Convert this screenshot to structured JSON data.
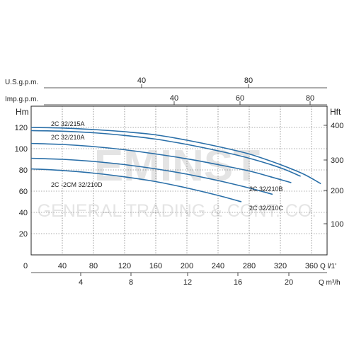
{
  "watermark": {
    "line1": "EMINST",
    "line2": "GENERAL TRADING & CONT. CO."
  },
  "axes": {
    "top1_label": "U.S.g.p.m.",
    "top1_ticks": [
      "40",
      "80"
    ],
    "top2_label": "Imp.g.p.m.",
    "top2_ticks": [
      "40",
      "60",
      "80"
    ],
    "left_unit": "Hm",
    "right_unit": "Hft",
    "right_ticks": [
      "400",
      "300",
      "200",
      "100"
    ],
    "bottom1_unit": "Q  l/1'",
    "bottom2_unit": "Q  m³/h",
    "bottom2_ticks": [
      "4",
      "8",
      "12",
      "16",
      "20"
    ]
  },
  "chart_data": {
    "type": "line",
    "title": "",
    "xlabel": "Q l/1'",
    "ylabel": "Hm",
    "xlim": [
      0,
      380
    ],
    "ylim": [
      0,
      140
    ],
    "x_ticks": [
      0,
      40,
      80,
      120,
      160,
      200,
      240,
      280,
      320,
      360
    ],
    "y_ticks": [
      20,
      40,
      60,
      80,
      100,
      120
    ],
    "grid": true,
    "series": [
      {
        "name": "2C 32/215A",
        "color": "#2a6fa8",
        "points": [
          [
            0,
            120
          ],
          [
            40,
            119.5
          ],
          [
            80,
            118
          ],
          [
            120,
            116
          ],
          [
            160,
            113
          ],
          [
            200,
            108
          ],
          [
            240,
            102
          ],
          [
            280,
            95
          ],
          [
            320,
            85
          ],
          [
            350,
            76
          ],
          [
            372,
            67
          ]
        ]
      },
      {
        "name": "2C 32/210A",
        "color": "#2a6fa8",
        "points": [
          [
            0,
            117
          ],
          [
            40,
            116.5
          ],
          [
            80,
            115
          ],
          [
            120,
            112.5
          ],
          [
            160,
            109
          ],
          [
            200,
            104
          ],
          [
            240,
            98
          ],
          [
            280,
            91
          ],
          [
            320,
            82
          ],
          [
            346,
            74
          ]
        ]
      },
      {
        "name": "2C 32/210B",
        "color": "#2a6fa8",
        "points": [
          [
            0,
            105
          ],
          [
            40,
            104
          ],
          [
            80,
            102
          ],
          [
            120,
            99
          ],
          [
            160,
            95
          ],
          [
            200,
            90.5
          ],
          [
            240,
            85
          ],
          [
            280,
            79
          ],
          [
            310,
            73
          ],
          [
            334,
            68
          ]
        ]
      },
      {
        "name": "2C 32/210C",
        "color": "#2a6fa8",
        "points": [
          [
            0,
            91
          ],
          [
            40,
            90
          ],
          [
            80,
            88
          ],
          [
            120,
            85
          ],
          [
            160,
            81
          ],
          [
            200,
            76
          ],
          [
            240,
            70
          ],
          [
            280,
            63
          ],
          [
            310,
            57
          ]
        ]
      },
      {
        "name": "2C -2CM 32/210D",
        "color": "#2a6fa8",
        "points": [
          [
            0,
            81
          ],
          [
            40,
            79.5
          ],
          [
            80,
            77
          ],
          [
            120,
            73.5
          ],
          [
            160,
            69
          ],
          [
            200,
            63
          ],
          [
            240,
            56
          ],
          [
            270,
            50
          ]
        ]
      }
    ]
  }
}
